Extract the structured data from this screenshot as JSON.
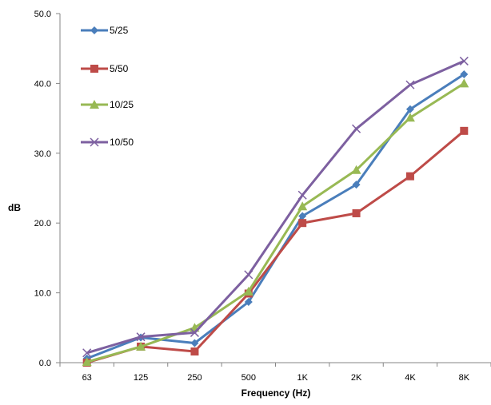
{
  "chart_data": {
    "type": "line",
    "title": "",
    "xlabel": "Frequency (Hz)",
    "ylabel": "dB",
    "categories": [
      "63",
      "125",
      "250",
      "500",
      "1K",
      "2K",
      "4K",
      "8K"
    ],
    "ylim": [
      0,
      50
    ],
    "yticks": [
      "0.0",
      "10.0",
      "20.0",
      "30.0",
      "40.0",
      "50.0"
    ],
    "grid": false,
    "legend_position": "top-left",
    "series": [
      {
        "name": "5/25",
        "color": "#4a7ebb",
        "marker": "diamond",
        "values": [
          0.6,
          3.6,
          2.8,
          8.7,
          21.0,
          25.5,
          36.3,
          41.3
        ]
      },
      {
        "name": "5/50",
        "color": "#be4b48",
        "marker": "square",
        "values": [
          0.0,
          2.3,
          1.6,
          9.9,
          20.0,
          21.4,
          26.7,
          33.2
        ]
      },
      {
        "name": "10/25",
        "color": "#98b954",
        "marker": "triangle",
        "values": [
          0.1,
          2.3,
          5.0,
          10.2,
          22.4,
          27.6,
          35.1,
          40.0
        ]
      },
      {
        "name": "10/50",
        "color": "#7d60a0",
        "marker": "x",
        "values": [
          1.4,
          3.7,
          4.3,
          12.6,
          24.0,
          33.5,
          39.8,
          43.2
        ]
      }
    ]
  }
}
